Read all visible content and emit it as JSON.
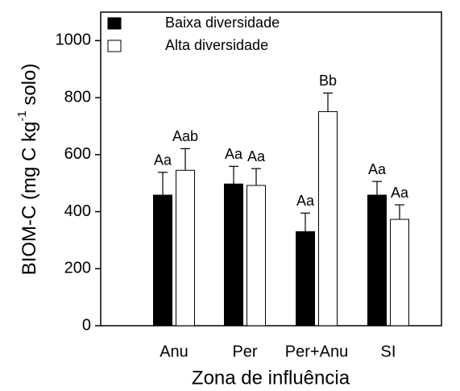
{
  "chart_data": {
    "type": "bar",
    "categories": [
      "Anu",
      "Per",
      "Per+Anu",
      "SI"
    ],
    "series": [
      {
        "name": "Baixa diversidade",
        "color": "#000000",
        "values": [
          458,
          497,
          330,
          458
        ],
        "errors": [
          80,
          62,
          65,
          48
        ],
        "labels": [
          "Aa",
          "Aa",
          "Aa",
          "Aa"
        ]
      },
      {
        "name": "Alta diversidade",
        "color": "#ffffff",
        "values": [
          545,
          492,
          751,
          373
        ],
        "errors": [
          76,
          59,
          65,
          51
        ],
        "labels": [
          "Aab",
          "Aa",
          "Bb",
          "Aa"
        ]
      }
    ],
    "xlabel": "Zona de influência",
    "ylabel": {
      "text": "BIOM-C (mg C kg",
      "sup": "-1",
      "tail": " solo)"
    },
    "ylim": [
      0,
      1100
    ],
    "yticks": [
      0,
      200,
      400,
      600,
      800,
      1000
    ],
    "legend": "upper left",
    "grid": false
  }
}
